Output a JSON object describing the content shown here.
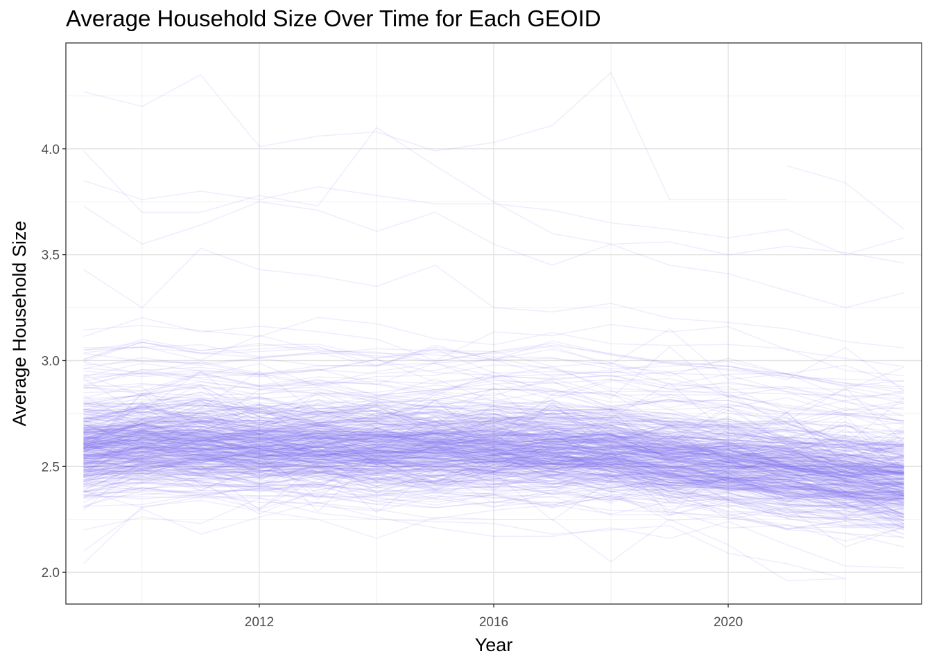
{
  "chart_data": {
    "type": "line",
    "title": "Average Household Size Over Time for Each GEOID",
    "xlabel": "Year",
    "ylabel": "Average Household Size",
    "xlim": [
      2008.7,
      2023.3
    ],
    "ylim": [
      1.85,
      4.5
    ],
    "x_ticks": [
      2012,
      2016,
      2020
    ],
    "x_tick_labels": [
      "2012",
      "2016",
      "2020"
    ],
    "y_ticks": [
      2.0,
      2.5,
      3.0,
      3.5,
      4.0
    ],
    "y_tick_labels": [
      "2.0",
      "2.5",
      "3.0",
      "3.5",
      "4.0"
    ],
    "grid": true,
    "line_color": "#7b68ee",
    "line_opacity": 0.12,
    "years": [
      2009,
      2010,
      2011,
      2012,
      2013,
      2014,
      2015,
      2016,
      2017,
      2018,
      2019,
      2020,
      2021,
      2022,
      2023
    ],
    "series_count": 400,
    "central_trend": [
      2.58,
      2.6,
      2.6,
      2.59,
      2.59,
      2.58,
      2.58,
      2.58,
      2.57,
      2.56,
      2.53,
      2.51,
      2.48,
      2.45,
      2.42
    ],
    "highlighted_series": [
      {
        "values": [
          4.27,
          4.2,
          4.35,
          4.01,
          4.06,
          4.08,
          3.99,
          4.03,
          4.11,
          4.36,
          3.76,
          3.76,
          3.76,
          null,
          null
        ]
      },
      {
        "values": [
          null,
          null,
          null,
          null,
          null,
          null,
          null,
          null,
          null,
          null,
          null,
          null,
          3.92,
          3.84,
          3.62
        ]
      },
      {
        "values": [
          3.99,
          3.7,
          3.7,
          3.78,
          3.73,
          4.1,
          3.92,
          3.75,
          3.6,
          3.55,
          3.56,
          3.5,
          3.54,
          3.51,
          3.46
        ]
      },
      {
        "values": [
          3.85,
          3.76,
          3.8,
          3.76,
          3.82,
          3.78,
          3.74,
          3.74,
          3.71,
          3.65,
          3.62,
          3.58,
          3.62,
          3.5,
          3.58
        ]
      },
      {
        "values": [
          3.73,
          3.55,
          3.64,
          3.75,
          3.71,
          3.61,
          3.7,
          3.55,
          3.45,
          3.55,
          3.45,
          3.41,
          3.33,
          3.25,
          3.32
        ]
      },
      {
        "values": [
          3.43,
          3.25,
          3.53,
          3.43,
          3.4,
          3.35,
          3.45,
          3.25,
          3.23,
          3.27,
          3.2,
          3.18,
          3.15,
          3.09,
          3.06
        ]
      },
      {
        "values": [
          2.04,
          2.31,
          2.34,
          2.29,
          2.25,
          2.16,
          2.26,
          2.25,
          2.25,
          2.05,
          2.25,
          2.13,
          1.96,
          1.97,
          null
        ]
      },
      {
        "values": [
          2.1,
          2.3,
          2.18,
          2.26,
          2.33,
          2.26,
          2.21,
          2.17,
          2.17,
          2.21,
          2.16,
          2.24,
          2.13,
          2.03,
          2.02
        ]
      },
      {
        "values": [
          2.2,
          2.26,
          2.23,
          2.35,
          2.28,
          2.25,
          2.24,
          2.23,
          2.18,
          2.2,
          2.22,
          2.09,
          2.04,
          1.97,
          null
        ]
      }
    ]
  }
}
